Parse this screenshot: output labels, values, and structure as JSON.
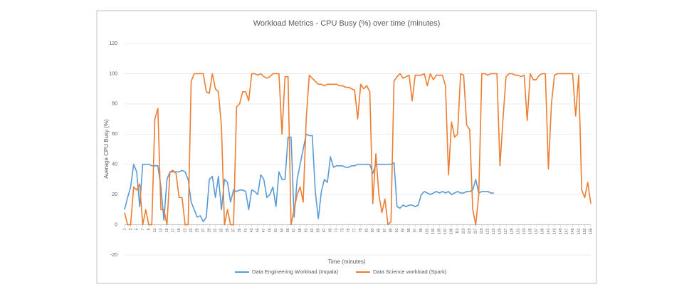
{
  "chart_data": {
    "type": "line",
    "title": "Workload Metrics - CPU Busy (%) over time (minutes)",
    "xlabel": "Time (minutes)",
    "ylabel": "Average CPU Busy (%)",
    "x": [
      1,
      2,
      3,
      4,
      5,
      6,
      7,
      8,
      9,
      10,
      11,
      12,
      13,
      14,
      15,
      16,
      17,
      18,
      19,
      20,
      21,
      22,
      23,
      24,
      25,
      26,
      27,
      28,
      29,
      30,
      31,
      32,
      33,
      34,
      35,
      36,
      37,
      38,
      39,
      40,
      41,
      42,
      43,
      44,
      45,
      46,
      47,
      48,
      49,
      50,
      51,
      52,
      53,
      54,
      55,
      56,
      57,
      58,
      59,
      60,
      61,
      62,
      63,
      64,
      65,
      66,
      67,
      68,
      69,
      70,
      71,
      72,
      73,
      74,
      75,
      76,
      77,
      78,
      79,
      80,
      81,
      82,
      83,
      84,
      85,
      86,
      87,
      88,
      89,
      90,
      91,
      92,
      93,
      94,
      95,
      96,
      97,
      98,
      99,
      100,
      101,
      102,
      103,
      104,
      105,
      106,
      107,
      108,
      109,
      110,
      111,
      112,
      113,
      114,
      115,
      116,
      117,
      118,
      119,
      120,
      121,
      122,
      123,
      124,
      125,
      126,
      127,
      128,
      129,
      130,
      131,
      132,
      133,
      134,
      135,
      136,
      137,
      138,
      139,
      140,
      141,
      142,
      143,
      144,
      145,
      146,
      147,
      148,
      149,
      150,
      151,
      152,
      153,
      154,
      155
    ],
    "xlim": [
      1,
      155
    ],
    "xticks": [
      1,
      3,
      5,
      7,
      9,
      11,
      13,
      15,
      17,
      19,
      21,
      23,
      25,
      27,
      29,
      31,
      33,
      35,
      37,
      39,
      41,
      43,
      45,
      47,
      49,
      51,
      53,
      55,
      57,
      59,
      61,
      63,
      65,
      67,
      69,
      71,
      73,
      75,
      77,
      79,
      81,
      83,
      85,
      87,
      89,
      91,
      93,
      95,
      97,
      99,
      101,
      103,
      105,
      107,
      109,
      111,
      113,
      115,
      117,
      119,
      121,
      123,
      125,
      127,
      129,
      131,
      133,
      135,
      137,
      139,
      141,
      143,
      145,
      147,
      149,
      151,
      153,
      155
    ],
    "ylim": [
      -20,
      120
    ],
    "yticks": [
      -20,
      0,
      20,
      40,
      60,
      80,
      100,
      120
    ],
    "grid": true,
    "legend": "bottom",
    "series": [
      {
        "name": "Data Engineering Workload (Impala)",
        "color": "#5b9bd5",
        "values": [
          10,
          18,
          25,
          40,
          35,
          12,
          40,
          40,
          40,
          39,
          39,
          39,
          25,
          3,
          30,
          35,
          35,
          35,
          35,
          36,
          35,
          30,
          15,
          10,
          5,
          6,
          2,
          5,
          30,
          32,
          18,
          32,
          10,
          30,
          28,
          15,
          23,
          22,
          23,
          23,
          22,
          10,
          23,
          22,
          20,
          33,
          30,
          18,
          20,
          25,
          12,
          35,
          30,
          30,
          58,
          58,
          5,
          30,
          40,
          50,
          60,
          59,
          59,
          22,
          4,
          22,
          30,
          28,
          45,
          38,
          39,
          39,
          39,
          38,
          38,
          39,
          39,
          40,
          40,
          40,
          40,
          40,
          34,
          40,
          40,
          40,
          40,
          40,
          40,
          41,
          12,
          11,
          13,
          12,
          13,
          13,
          12,
          13,
          20,
          22,
          21,
          20,
          21,
          22,
          21,
          22,
          21,
          22,
          20,
          21,
          22,
          21,
          21,
          22,
          22,
          23,
          30,
          21,
          22,
          22,
          22,
          21,
          21,
          null,
          null,
          null,
          null,
          null,
          null,
          null,
          null,
          null,
          null,
          null,
          null,
          null,
          null,
          null,
          null,
          null,
          null,
          null,
          null,
          null,
          null,
          null,
          null,
          null,
          null,
          null,
          null,
          null,
          null,
          null,
          null
        ]
      },
      {
        "name": "Data Science workload (Spark)",
        "color": "#ed7d31",
        "values": [
          8,
          0,
          0,
          25,
          23,
          27,
          0,
          10,
          0,
          0,
          70,
          77,
          10,
          10,
          0,
          35,
          36,
          34,
          18,
          18,
          0,
          0,
          95,
          100,
          100,
          100,
          100,
          88,
          87,
          100,
          90,
          88,
          65,
          0,
          10,
          0,
          0,
          78,
          80,
          88,
          88,
          82,
          100,
          100,
          99,
          100,
          98,
          97,
          98,
          100,
          100,
          100,
          60,
          98,
          98,
          0,
          10,
          20,
          25,
          15,
          70,
          99,
          97,
          95,
          93,
          93,
          92,
          93,
          93,
          93,
          93,
          92,
          92,
          91,
          91,
          90,
          89,
          70,
          93,
          90,
          92,
          88,
          14,
          47,
          20,
          8,
          17,
          0,
          2,
          95,
          98,
          100,
          97,
          98,
          99,
          82,
          99,
          99,
          99,
          100,
          92,
          100,
          96,
          99,
          99,
          99,
          92,
          33,
          68,
          58,
          60,
          100,
          99,
          66,
          63,
          10,
          0,
          20,
          100,
          100,
          99,
          100,
          100,
          100,
          39,
          70,
          98,
          100,
          100,
          99,
          99,
          98,
          99,
          69,
          100,
          96,
          96,
          99,
          100,
          100,
          37,
          80,
          99,
          100,
          100,
          100,
          100,
          100,
          100,
          72,
          99,
          23,
          18,
          28,
          14
        ]
      }
    ]
  }
}
